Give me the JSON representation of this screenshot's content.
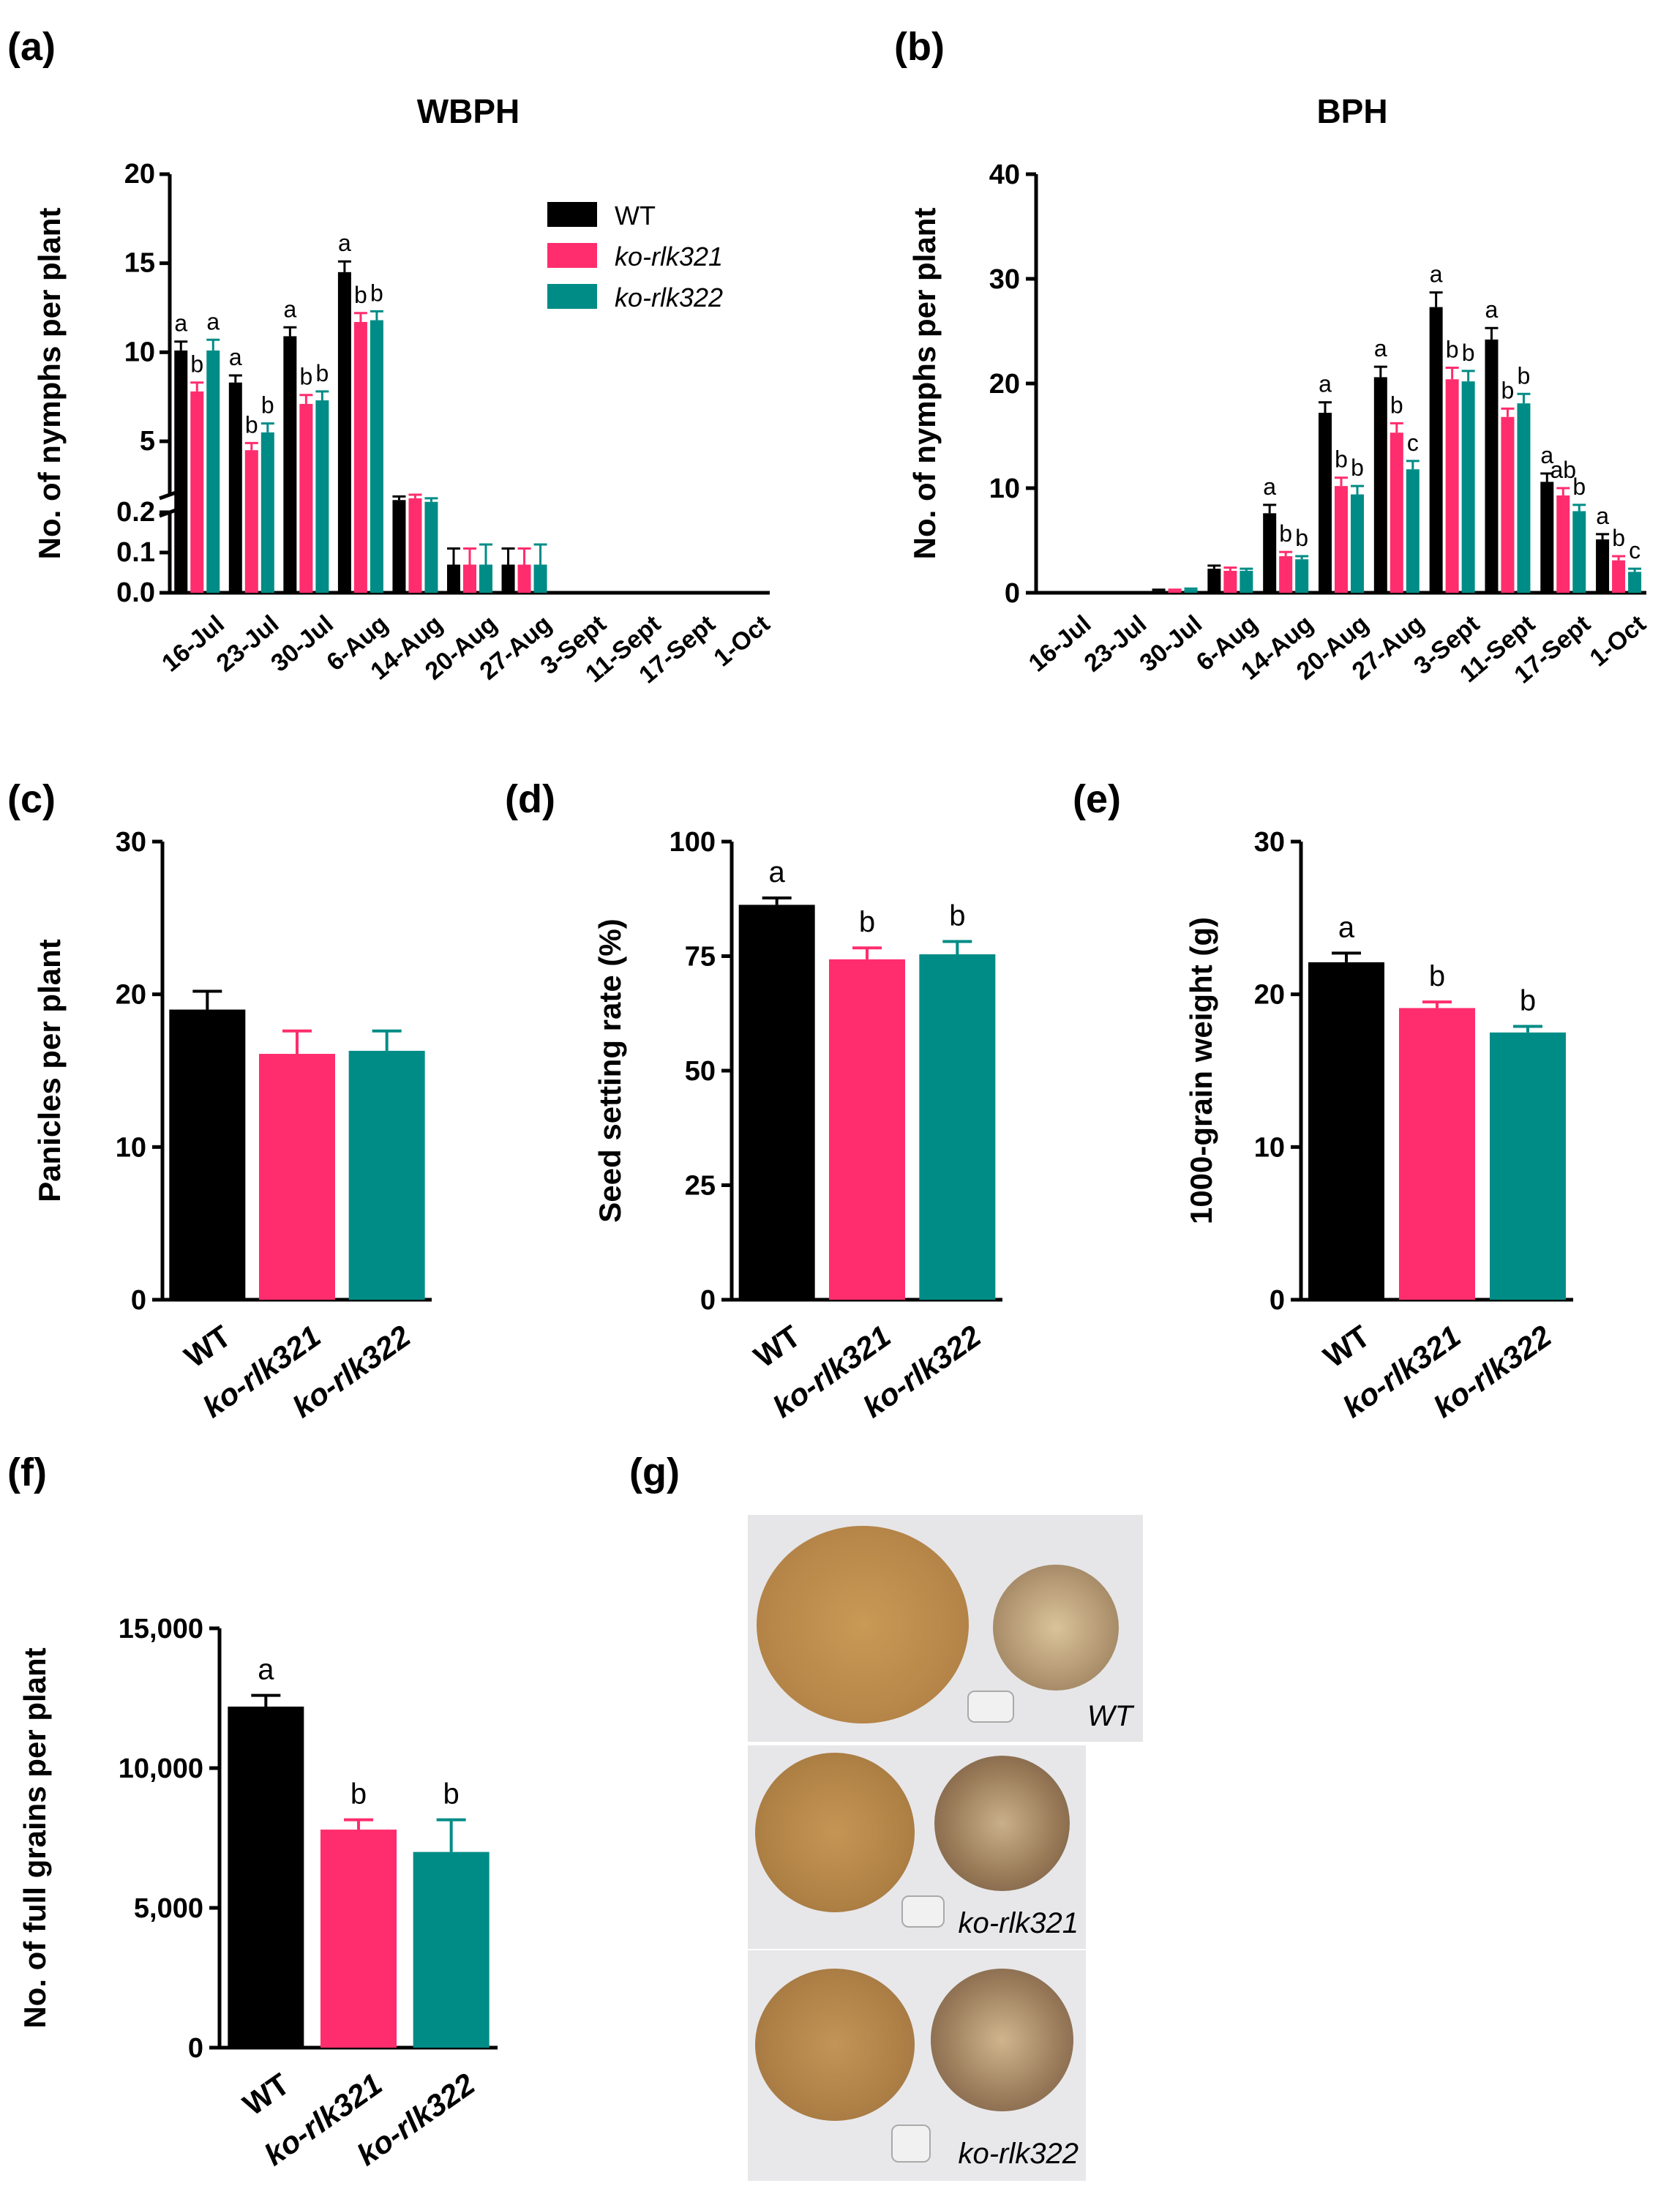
{
  "panel_labels": {
    "a": "(a)",
    "b": "(b)",
    "c": "(c)",
    "d": "(d)",
    "e": "(e)",
    "f": "(f)",
    "g": "(g)"
  },
  "colors": {
    "WT": "#000000",
    "ko-rlk321": "#ff2d6d",
    "ko-rlk322": "#008c86"
  },
  "legend": [
    "WT",
    "ko-rlk321",
    "ko-rlk322"
  ],
  "chart_data": [
    {
      "id": "a",
      "type": "bar",
      "title": "WBPH",
      "ylabel": "No. of nymphs per plant",
      "categories": [
        "16-Jul",
        "23-Jul",
        "30-Jul",
        "6-Aug",
        "14-Aug",
        "20-Aug",
        "27-Aug",
        "3-Sept",
        "11-Sept",
        "17-Sept",
        "1-Oct"
      ],
      "y_axis": {
        "segments": [
          [
            0,
            0.2
          ],
          [
            2,
            20
          ]
        ],
        "lower_ticks": [
          "0.0",
          "0.1",
          "0.2"
        ],
        "upper_ticks": [
          "5",
          "10",
          "15",
          "20"
        ],
        "broken": true
      },
      "series": [
        {
          "name": "WT",
          "values": [
            10.1,
            8.3,
            10.9,
            14.5,
            1.7,
            0.07,
            0.07,
            0,
            0,
            0,
            0
          ],
          "errors": [
            0.5,
            0.4,
            0.5,
            0.6,
            0.2,
            0.04,
            0.04,
            0,
            0,
            0,
            0
          ],
          "labels": [
            "a",
            "a",
            "a",
            "a",
            "",
            "",
            "",
            "",
            "",
            "",
            ""
          ]
        },
        {
          "name": "ko-rlk321",
          "values": [
            7.8,
            4.5,
            7.1,
            11.7,
            1.8,
            0.07,
            0.07,
            0,
            0,
            0,
            0
          ],
          "errors": [
            0.5,
            0.4,
            0.5,
            0.5,
            0.2,
            0.04,
            0.04,
            0,
            0,
            0,
            0
          ],
          "labels": [
            "b",
            "b",
            "b",
            "b",
            "",
            "",
            "",
            "",
            "",
            "",
            ""
          ]
        },
        {
          "name": "ko-rlk322",
          "values": [
            10.1,
            5.5,
            7.3,
            11.8,
            1.6,
            0.07,
            0.07,
            0,
            0,
            0,
            0
          ],
          "errors": [
            0.6,
            0.5,
            0.5,
            0.5,
            0.2,
            0.05,
            0.05,
            0,
            0,
            0,
            0
          ],
          "labels": [
            "a",
            "b",
            "b",
            "b",
            "",
            "",
            "",
            "",
            "",
            "",
            ""
          ]
        }
      ]
    },
    {
      "id": "b",
      "type": "bar",
      "title": "BPH",
      "ylabel": "No. of nymphs per plant",
      "categories": [
        "16-Jul",
        "23-Jul",
        "30-Jul",
        "6-Aug",
        "14-Aug",
        "20-Aug",
        "27-Aug",
        "3-Sept",
        "11-Sept",
        "17-Sept",
        "1-Oct"
      ],
      "ylim": [
        0,
        40
      ],
      "yticks": [
        0,
        10,
        20,
        30,
        40
      ],
      "series": [
        {
          "name": "WT",
          "values": [
            0,
            0,
            0.2,
            2.3,
            7.6,
            17.2,
            20.6,
            27.3,
            24.2,
            10.6,
            5.1
          ],
          "errors": [
            0,
            0,
            0.1,
            0.3,
            0.8,
            1.0,
            1.0,
            1.4,
            1.1,
            0.8,
            0.5
          ],
          "labels": [
            "",
            "",
            "",
            "",
            "a",
            "a",
            "a",
            "a",
            "a",
            "a",
            "a"
          ]
        },
        {
          "name": "ko-rlk321",
          "values": [
            0,
            0,
            0.2,
            2.1,
            3.5,
            10.2,
            15.3,
            20.4,
            16.8,
            9.3,
            3.1
          ],
          "errors": [
            0,
            0,
            0.1,
            0.3,
            0.4,
            0.8,
            0.9,
            1.1,
            0.8,
            0.7,
            0.4
          ],
          "labels": [
            "",
            "",
            "",
            "",
            "b",
            "b",
            "b",
            "b",
            "b",
            "ab",
            "b"
          ]
        },
        {
          "name": "ko-rlk322",
          "values": [
            0,
            0,
            0.3,
            2.1,
            3.2,
            9.4,
            11.8,
            20.2,
            18.1,
            7.8,
            2.0
          ],
          "errors": [
            0,
            0,
            0.1,
            0.2,
            0.3,
            0.8,
            0.8,
            1.0,
            0.9,
            0.6,
            0.3
          ],
          "labels": [
            "",
            "",
            "",
            "",
            "b",
            "b",
            "c",
            "b",
            "b",
            "b",
            "c"
          ]
        }
      ]
    },
    {
      "id": "c",
      "type": "bar",
      "ylabel": "Panicles per plant",
      "categories": [
        "WT",
        "ko-rlk321",
        "ko-rlk322"
      ],
      "values": [
        19.0,
        16.1,
        16.3
      ],
      "errors": [
        1.2,
        1.5,
        1.3
      ],
      "labels": [
        "",
        "",
        ""
      ],
      "ylim": [
        0,
        30
      ],
      "yticks": [
        0,
        10,
        20,
        30
      ],
      "ytick_labels": [
        "0",
        "10",
        "20",
        "30"
      ]
    },
    {
      "id": "d",
      "type": "bar",
      "ylabel": "Seed setting rate (%)",
      "categories": [
        "WT",
        "ko-rlk321",
        "ko-rlk322"
      ],
      "values": [
        86.2,
        74.3,
        75.4
      ],
      "errors": [
        1.5,
        2.5,
        2.8
      ],
      "labels": [
        "a",
        "b",
        "b"
      ],
      "ylim": [
        0,
        100
      ],
      "yticks": [
        0,
        25,
        50,
        75,
        100
      ],
      "ytick_labels": [
        "0",
        "25",
        "50",
        "75",
        "100"
      ]
    },
    {
      "id": "e",
      "type": "bar",
      "ylabel": "1000-grain weight (g)",
      "categories": [
        "WT",
        "ko-rlk321",
        "ko-rlk322"
      ],
      "values": [
        22.1,
        19.1,
        17.5
      ],
      "errors": [
        0.6,
        0.4,
        0.4
      ],
      "labels": [
        "a",
        "b",
        "b"
      ],
      "ylim": [
        0,
        30
      ],
      "yticks": [
        0,
        10,
        20,
        30
      ],
      "ytick_labels": [
        "0",
        "10",
        "20",
        "30"
      ]
    },
    {
      "id": "f",
      "type": "bar",
      "ylabel": "No. of full grains per plant",
      "categories": [
        "WT",
        "ko-rlk321",
        "ko-rlk322"
      ],
      "values": [
        12200,
        7800,
        7000
      ],
      "errors": [
        400,
        350,
        1150
      ],
      "labels": [
        "a",
        "b",
        "b"
      ],
      "ylim": [
        0,
        15000
      ],
      "yticks": [
        0,
        5000,
        10000,
        15000
      ],
      "ytick_labels": [
        "0",
        "5,000",
        "10,000",
        "15,000"
      ]
    }
  ],
  "photo": {
    "captions": [
      "WT",
      "ko-rlk321",
      "ko-rlk322"
    ]
  }
}
